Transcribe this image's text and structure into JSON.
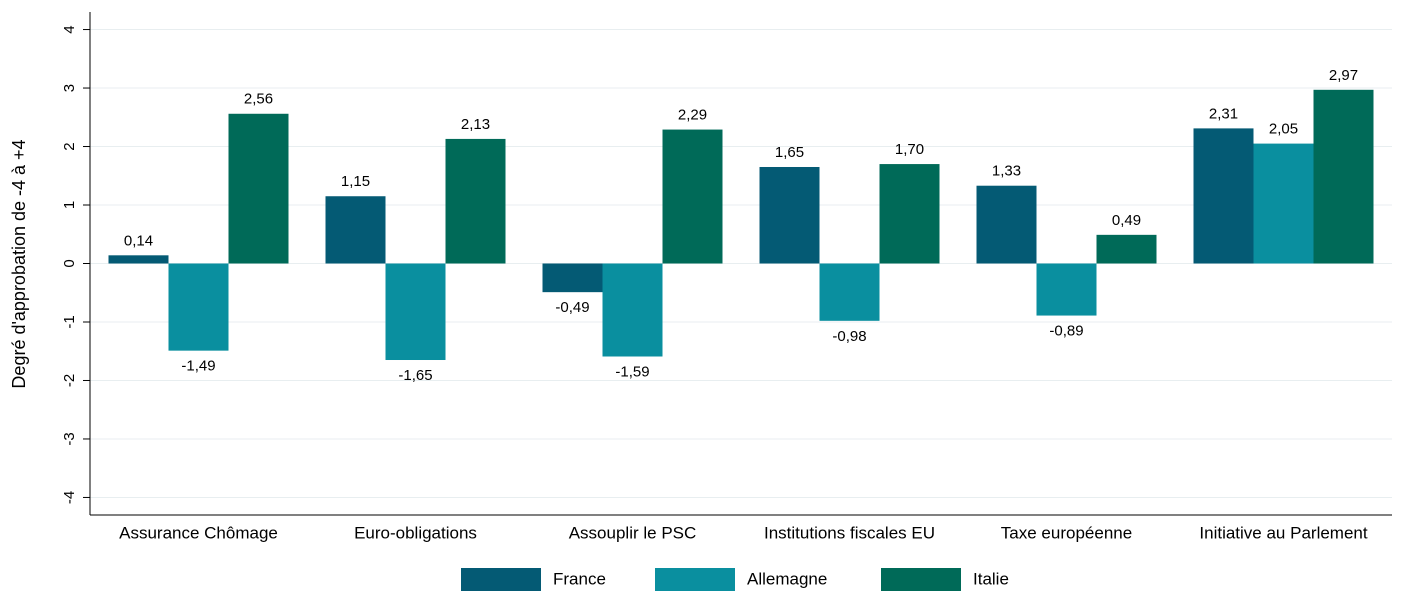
{
  "chart_data": {
    "type": "bar",
    "y_label": "Degré d'approbation de -4 à +4",
    "categories": [
      "Assurance Chômage",
      "Euro-obligations",
      "Assouplir le PSC",
      "Institutions fiscales EU",
      "Taxe européenne",
      "Initiative au Parlement"
    ],
    "series": [
      {
        "name": "France",
        "color": "#045a74",
        "values": [
          0.14,
          1.15,
          -0.49,
          1.65,
          1.33,
          2.31
        ],
        "value_labels": [
          "0,14",
          "1,15",
          "-0,49",
          "1,65",
          "1,33",
          "2,31"
        ]
      },
      {
        "name": "Allemagne",
        "color": "#0a8f9f",
        "values": [
          -1.49,
          -1.65,
          -1.59,
          -0.98,
          -0.89,
          2.05
        ],
        "value_labels": [
          "-1,49",
          "-1,65",
          "-1,59",
          "-0,98",
          "-0,89",
          "2,05"
        ]
      },
      {
        "name": "Italie",
        "color": "#006a58",
        "values": [
          2.56,
          2.13,
          2.29,
          1.7,
          0.49,
          2.97
        ],
        "value_labels": [
          "2,56",
          "2,13",
          "2,29",
          "1,70",
          "0,49",
          "2,97"
        ]
      }
    ],
    "ylim": [
      -4.3,
      4.3
    ],
    "yticks": [
      -4,
      -3,
      -2,
      -1,
      0,
      1,
      2,
      3,
      4
    ],
    "grid": true,
    "legend": "bottom"
  }
}
